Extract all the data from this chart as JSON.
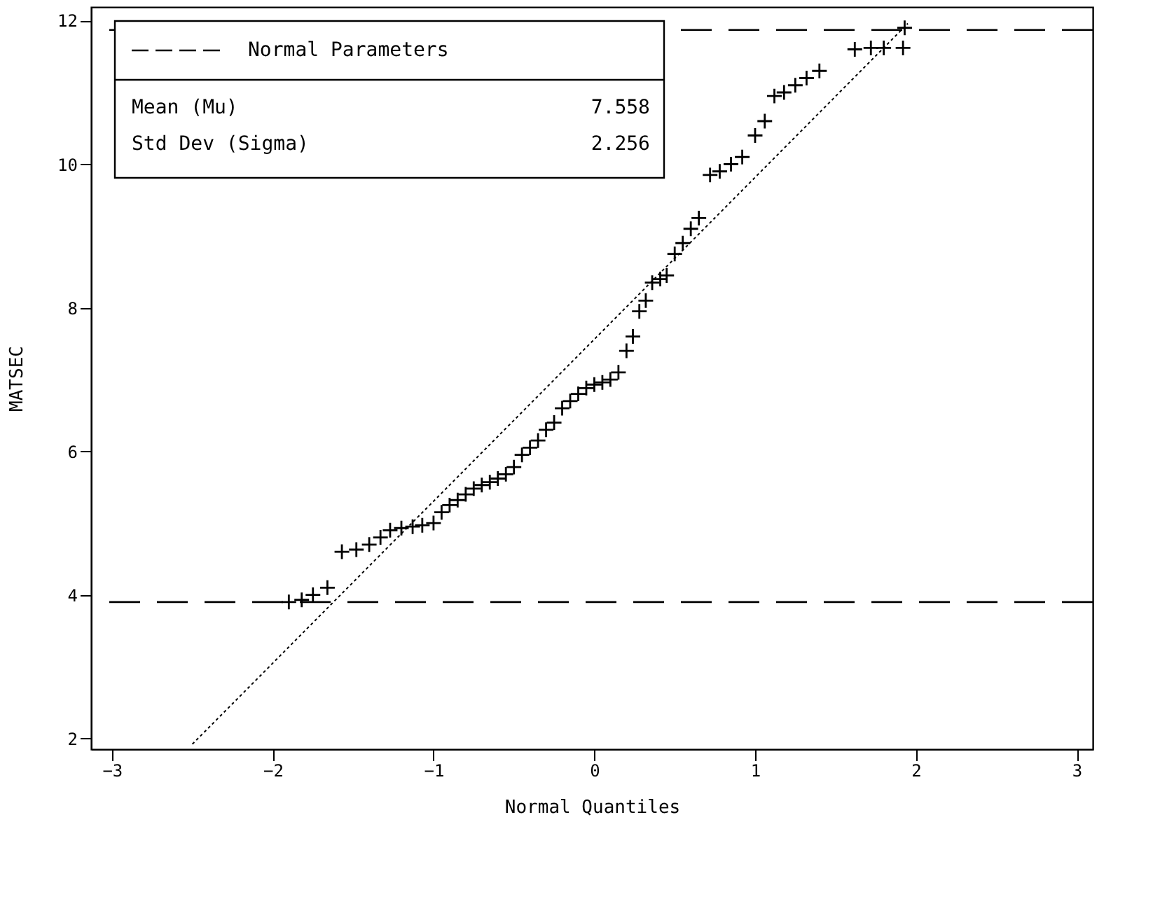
{
  "chart_data": {
    "type": "scatter",
    "xlabel": "Normal Quantiles",
    "ylabel": "MATSEC",
    "xlim": [
      -3.13,
      3.1
    ],
    "xticks": [
      -3,
      -2,
      -1,
      0,
      1,
      2,
      3
    ],
    "ylim": [
      1.85,
      12.19
    ],
    "yticks": [
      2,
      4,
      6,
      8,
      10,
      12
    ],
    "grid": false,
    "legend": "top left",
    "series": [
      {
        "color": "#000000",
        "marker": "cross",
        "x": [
          -1.9,
          -1.82,
          -1.75,
          -1.66,
          -1.57,
          -1.48,
          -1.4,
          -1.33,
          -1.27,
          -1.2,
          -1.13,
          -1.07,
          -1.0,
          -0.95,
          -0.9,
          -0.85,
          -0.8,
          -0.75,
          -0.7,
          -0.65,
          -0.6,
          -0.55,
          -0.5,
          -0.45,
          -0.4,
          -0.35,
          -0.3,
          -0.25,
          -0.2,
          -0.15,
          -0.1,
          -0.05,
          0.0,
          0.05,
          0.1,
          0.15,
          0.2,
          0.24,
          0.28,
          0.32,
          0.36,
          0.41,
          0.45,
          0.5,
          0.55,
          0.6,
          0.65,
          0.72,
          0.78,
          0.85,
          0.92,
          1.0,
          1.06,
          1.12,
          1.18,
          1.25,
          1.32,
          1.4,
          1.62,
          1.72,
          1.8,
          1.92,
          1.93
        ],
        "values": [
          3.9,
          3.93,
          4.0,
          4.1,
          4.6,
          4.63,
          4.7,
          4.8,
          4.9,
          4.93,
          4.95,
          4.97,
          5.0,
          5.15,
          5.25,
          5.32,
          5.4,
          5.48,
          5.53,
          5.57,
          5.62,
          5.68,
          5.78,
          5.95,
          6.05,
          6.15,
          6.3,
          6.4,
          6.6,
          6.7,
          6.8,
          6.88,
          6.93,
          6.96,
          7.0,
          7.1,
          7.4,
          7.6,
          7.95,
          8.1,
          8.35,
          8.4,
          8.45,
          8.75,
          8.9,
          9.1,
          9.25,
          9.85,
          9.9,
          10.0,
          10.1,
          10.4,
          10.6,
          10.95,
          11.0,
          11.1,
          11.2,
          11.3,
          11.6,
          11.62,
          11.62,
          11.62,
          11.9
        ]
      },
      {
        "name": "Normal Parameters",
        "type": "line",
        "line_style": "dotted",
        "marker": "none",
        "color": "#000000",
        "x": [
          -2.5,
          1.95
        ],
        "values": [
          1.92,
          11.96
        ]
      }
    ],
    "ref_lines": [
      {
        "axis": "y",
        "value": 3.9,
        "line_style": "dashed",
        "color": "#000000"
      },
      {
        "axis": "y",
        "value": 11.87,
        "line_style": "dashed",
        "color": "#000000"
      }
    ],
    "annotations": [
      "Mean (Mu)",
      "7.558",
      "Std Dev (Sigma)",
      "2.256"
    ]
  }
}
